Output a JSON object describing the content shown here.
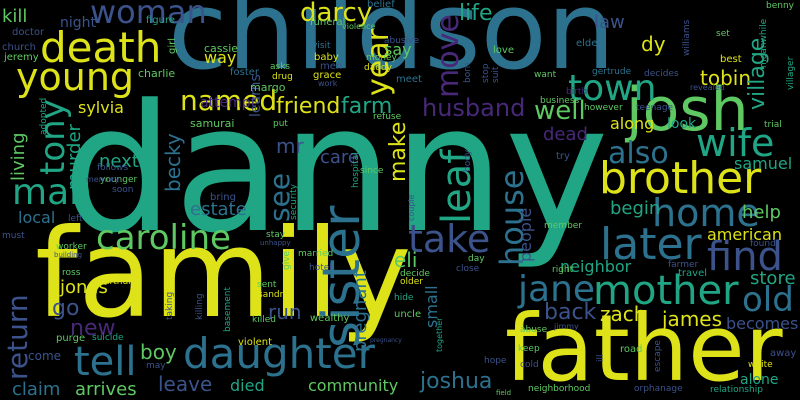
{
  "background": "#000000",
  "words": [
    {
      "text": "danny",
      "color": "#21a685"
    },
    {
      "text": "family",
      "color": "#dde318"
    },
    {
      "text": "childson",
      "color": "#2c728e"
    },
    {
      "text": "father",
      "color": "#dde318"
    },
    {
      "text": "josh",
      "color": "#5ec962"
    },
    {
      "text": "death",
      "color": "#dde318"
    },
    {
      "text": "young",
      "color": "#dde318"
    },
    {
      "text": "brother",
      "color": "#dde318"
    },
    {
      "text": "daughter",
      "color": "#2c728e"
    },
    {
      "text": "mother",
      "color": "#21a685"
    },
    {
      "text": "sister",
      "color": "#2c728e"
    },
    {
      "text": "later",
      "color": "#2c728e"
    },
    {
      "text": "home",
      "color": "#2c728e"
    },
    {
      "text": "town",
      "color": "#21a685"
    },
    {
      "text": "wife",
      "color": "#21a685"
    },
    {
      "text": "caroline",
      "color": "#5ec962"
    },
    {
      "text": "tell",
      "color": "#2c728e"
    },
    {
      "text": "woman",
      "color": "#3b528b"
    },
    {
      "text": "named",
      "color": "#dde318"
    },
    {
      "text": "darcy",
      "color": "#dde318"
    },
    {
      "text": "man",
      "color": "#21a685"
    },
    {
      "text": "tony",
      "color": "#21a685"
    },
    {
      "text": "find",
      "color": "#3b528b"
    },
    {
      "text": "jane",
      "color": "#2c728e"
    },
    {
      "text": "take",
      "color": "#3b528b"
    },
    {
      "text": "also",
      "color": "#2c728e"
    },
    {
      "text": "house",
      "color": "#2c728e"
    },
    {
      "text": "return",
      "color": "#3b528b"
    },
    {
      "text": "old",
      "color": "#2c728e"
    },
    {
      "text": "leaf",
      "color": "#21a685"
    },
    {
      "text": "year",
      "color": "#dde318"
    },
    {
      "text": "move",
      "color": "#482878"
    },
    {
      "text": "life",
      "color": "#21a685"
    },
    {
      "text": "friend",
      "color": "#dde318"
    },
    {
      "text": "farm",
      "color": "#21a685"
    },
    {
      "text": "husband",
      "color": "#482878"
    },
    {
      "text": "well",
      "color": "#5ec962"
    },
    {
      "text": "tobin",
      "color": "#dde318"
    },
    {
      "text": "village",
      "color": "#21a685"
    },
    {
      "text": "dy",
      "color": "#dde318"
    },
    {
      "text": "law",
      "color": "#3b528b"
    },
    {
      "text": "kill",
      "color": "#5ec962"
    },
    {
      "text": "night",
      "color": "#3b528b"
    },
    {
      "text": "go",
      "color": "#3b528b"
    },
    {
      "text": "new",
      "color": "#482878"
    },
    {
      "text": "boy",
      "color": "#5ec962"
    },
    {
      "text": "leave",
      "color": "#3b528b"
    },
    {
      "text": "died",
      "color": "#21a685"
    },
    {
      "text": "community",
      "color": "#5ec962"
    },
    {
      "text": "joshua",
      "color": "#2c728e"
    },
    {
      "text": "claim",
      "color": "#2c728e"
    },
    {
      "text": "arrives",
      "color": "#5ec962"
    },
    {
      "text": "zach",
      "color": "#dde318"
    },
    {
      "text": "james",
      "color": "#dde318"
    },
    {
      "text": "back",
      "color": "#3b528b"
    },
    {
      "text": "store",
      "color": "#21a685"
    },
    {
      "text": "becomes",
      "color": "#3b528b"
    },
    {
      "text": "american",
      "color": "#dde318"
    },
    {
      "text": "help",
      "color": "#5ec962"
    },
    {
      "text": "begin",
      "color": "#21a685"
    },
    {
      "text": "neighbor",
      "color": "#21a685"
    },
    {
      "text": "people",
      "color": "#3b528b"
    },
    {
      "text": "pregnant",
      "color": "#2c728e"
    },
    {
      "text": "eli",
      "color": "#5ec962"
    },
    {
      "text": "make",
      "color": "#dde318"
    },
    {
      "text": "see",
      "color": "#2c728e"
    },
    {
      "text": "care",
      "color": "#3b528b"
    },
    {
      "text": "mr",
      "color": "#3b528b"
    },
    {
      "text": "estate",
      "color": "#2c728e"
    },
    {
      "text": "becky",
      "color": "#2c728e"
    },
    {
      "text": "next",
      "color": "#21a685"
    },
    {
      "text": "murder",
      "color": "#21a685"
    },
    {
      "text": "living",
      "color": "#5ec962"
    },
    {
      "text": "local",
      "color": "#2c728e"
    },
    {
      "text": "jonas",
      "color": "#dde318"
    },
    {
      "text": "sylvia",
      "color": "#dde318"
    },
    {
      "text": "attempt",
      "color": "#482878"
    },
    {
      "text": "learns",
      "color": "#3b528b"
    },
    {
      "text": "samuel",
      "color": "#21a685"
    },
    {
      "text": "dead",
      "color": "#482878"
    },
    {
      "text": "along",
      "color": "#dde318"
    },
    {
      "text": "look",
      "color": "#21a685"
    },
    {
      "text": "say",
      "color": "#5ec962"
    },
    {
      "text": "way",
      "color": "#dde318"
    },
    {
      "text": "run",
      "color": "#3b528b"
    },
    {
      "text": "small",
      "color": "#2c728e"
    },
    {
      "text": "charlie",
      "color": "#5ec962"
    },
    {
      "text": "cassie",
      "color": "#5ec962"
    },
    {
      "text": "margo",
      "color": "#5ec962"
    },
    {
      "text": "samurai",
      "color": "#5ec962"
    },
    {
      "text": "church",
      "color": "#3b528b"
    },
    {
      "text": "jeremy",
      "color": "#5ec962"
    },
    {
      "text": "doctor",
      "color": "#3b528b"
    },
    {
      "text": "figure",
      "color": "#21a685"
    },
    {
      "text": "girl",
      "color": "#5ec962"
    },
    {
      "text": "funeral",
      "color": "#5ec962"
    },
    {
      "text": "violence",
      "color": "#5ec962"
    },
    {
      "text": "visit",
      "color": "#2c728e"
    },
    {
      "text": "baby",
      "color": "#dde318"
    },
    {
      "text": "men",
      "color": "#3b528b"
    },
    {
      "text": "grace",
      "color": "#dde318"
    },
    {
      "text": "work",
      "color": "#3b528b"
    },
    {
      "text": "belief",
      "color": "#2c728e"
    },
    {
      "text": "abusive",
      "color": "#3b528b"
    },
    {
      "text": "money",
      "color": "#5ec962"
    },
    {
      "text": "daddy",
      "color": "#dde318"
    },
    {
      "text": "meet",
      "color": "#2c728e"
    },
    {
      "text": "love",
      "color": "#5ec962"
    },
    {
      "text": "born",
      "color": "#3b528b"
    },
    {
      "text": "stop",
      "color": "#3b528b"
    },
    {
      "text": "suit",
      "color": "#3b528b"
    },
    {
      "text": "elder",
      "color": "#2c728e"
    },
    {
      "text": "want",
      "color": "#5ec962"
    },
    {
      "text": "gertrude",
      "color": "#2c728e"
    },
    {
      "text": "decides",
      "color": "#3b528b"
    },
    {
      "text": "set",
      "color": "#5ec962"
    },
    {
      "text": "best",
      "color": "#dde318"
    },
    {
      "text": "benny",
      "color": "#5ec962"
    },
    {
      "text": "williams",
      "color": "#3b528b"
    },
    {
      "text": "meanwhile",
      "color": "#21a685"
    },
    {
      "text": "villager",
      "color": "#21a685"
    },
    {
      "text": "revealed",
      "color": "#3b528b"
    },
    {
      "text": "teenage",
      "color": "#3b528b"
    },
    {
      "text": "however",
      "color": "#5ec962"
    },
    {
      "text": "birth",
      "color": "#482878"
    },
    {
      "text": "business",
      "color": "#5ec962"
    },
    {
      "text": "refuse",
      "color": "#5ec962"
    },
    {
      "text": "put",
      "color": "#5ec962"
    },
    {
      "text": "drug",
      "color": "#dde318"
    },
    {
      "text": "foster",
      "color": "#2c728e"
    },
    {
      "text": "asks",
      "color": "#5ec962"
    },
    {
      "text": "trial",
      "color": "#5ec962"
    },
    {
      "text": "try",
      "color": "#3b528b"
    },
    {
      "text": "body",
      "color": "#3b528b"
    },
    {
      "text": "since",
      "color": "#5ec962"
    },
    {
      "text": "hospital",
      "color": "#21a685"
    },
    {
      "text": "security",
      "color": "#21a685"
    },
    {
      "text": "follows",
      "color": "#3b528b"
    },
    {
      "text": "younger",
      "color": "#5ec962"
    },
    {
      "text": "memory",
      "color": "#3b528b"
    },
    {
      "text": "soon",
      "color": "#3b528b"
    },
    {
      "text": "adopted",
      "color": "#21a685"
    },
    {
      "text": "left",
      "color": "#3b528b"
    },
    {
      "text": "must",
      "color": "#3b528b"
    },
    {
      "text": "bring",
      "color": "#3b528b"
    },
    {
      "text": "couple",
      "color": "#3b528b"
    },
    {
      "text": "member",
      "color": "#5ec962"
    },
    {
      "text": "worker",
      "color": "#5ec962"
    },
    {
      "text": "building",
      "color": "#3b528b"
    },
    {
      "text": "stay",
      "color": "#5ec962"
    },
    {
      "text": "unhappy",
      "color": "#3b528b"
    },
    {
      "text": "give",
      "color": "#5ec962"
    },
    {
      "text": "married",
      "color": "#5ec962"
    },
    {
      "text": "decide",
      "color": "#5ec962"
    },
    {
      "text": "close",
      "color": "#3b528b"
    },
    {
      "text": "right",
      "color": "#5ec962"
    },
    {
      "text": "found",
      "color": "#3b528b"
    },
    {
      "text": "farmer",
      "color": "#3b528b"
    },
    {
      "text": "travel",
      "color": "#21a685"
    },
    {
      "text": "day",
      "color": "#5ec962"
    },
    {
      "text": "hotel",
      "color": "#3b528b"
    },
    {
      "text": "ross",
      "color": "#5ec962"
    },
    {
      "text": "arthur",
      "color": "#dde318"
    },
    {
      "text": "taking",
      "color": "#3b528b"
    },
    {
      "text": "basement",
      "color": "#21a685"
    },
    {
      "text": "killing",
      "color": "#3b528b"
    },
    {
      "text": "sandra",
      "color": "#dde318"
    },
    {
      "text": "sent",
      "color": "#5ec962"
    },
    {
      "text": "killed",
      "color": "#5ec962"
    },
    {
      "text": "wealthy",
      "color": "#5ec962"
    },
    {
      "text": "uncle",
      "color": "#5ec962"
    },
    {
      "text": "older",
      "color": "#dde318"
    },
    {
      "text": "hide",
      "color": "#21a685"
    },
    {
      "text": "together",
      "color": "#21a685"
    },
    {
      "text": "abuse",
      "color": "#5ec962"
    },
    {
      "text": "jimmy",
      "color": "#3b528b"
    },
    {
      "text": "keep",
      "color": "#5ec962"
    },
    {
      "text": "may",
      "color": "#3b528b"
    },
    {
      "text": "cold",
      "color": "#3b528b"
    },
    {
      "text": "pregnancy",
      "color": "#3b528b"
    },
    {
      "text": "hope",
      "color": "#3b528b"
    },
    {
      "text": "road",
      "color": "#5ec962"
    },
    {
      "text": "escape",
      "color": "#3b528b"
    },
    {
      "text": "ill",
      "color": "#3b528b"
    },
    {
      "text": "white",
      "color": "#dde318"
    },
    {
      "text": "away",
      "color": "#3b528b"
    },
    {
      "text": "alone",
      "color": "#21a685"
    },
    {
      "text": "relationship",
      "color": "#21a685"
    },
    {
      "text": "orphanage",
      "color": "#3b528b"
    },
    {
      "text": "neighborhood",
      "color": "#5ec962"
    },
    {
      "text": "field",
      "color": "#5ec962"
    },
    {
      "text": "violent",
      "color": "#dde318"
    },
    {
      "text": "purge",
      "color": "#5ec962"
    },
    {
      "text": "suicide",
      "color": "#21a685"
    },
    {
      "text": "come",
      "color": "#3b528b"
    }
  ]
}
